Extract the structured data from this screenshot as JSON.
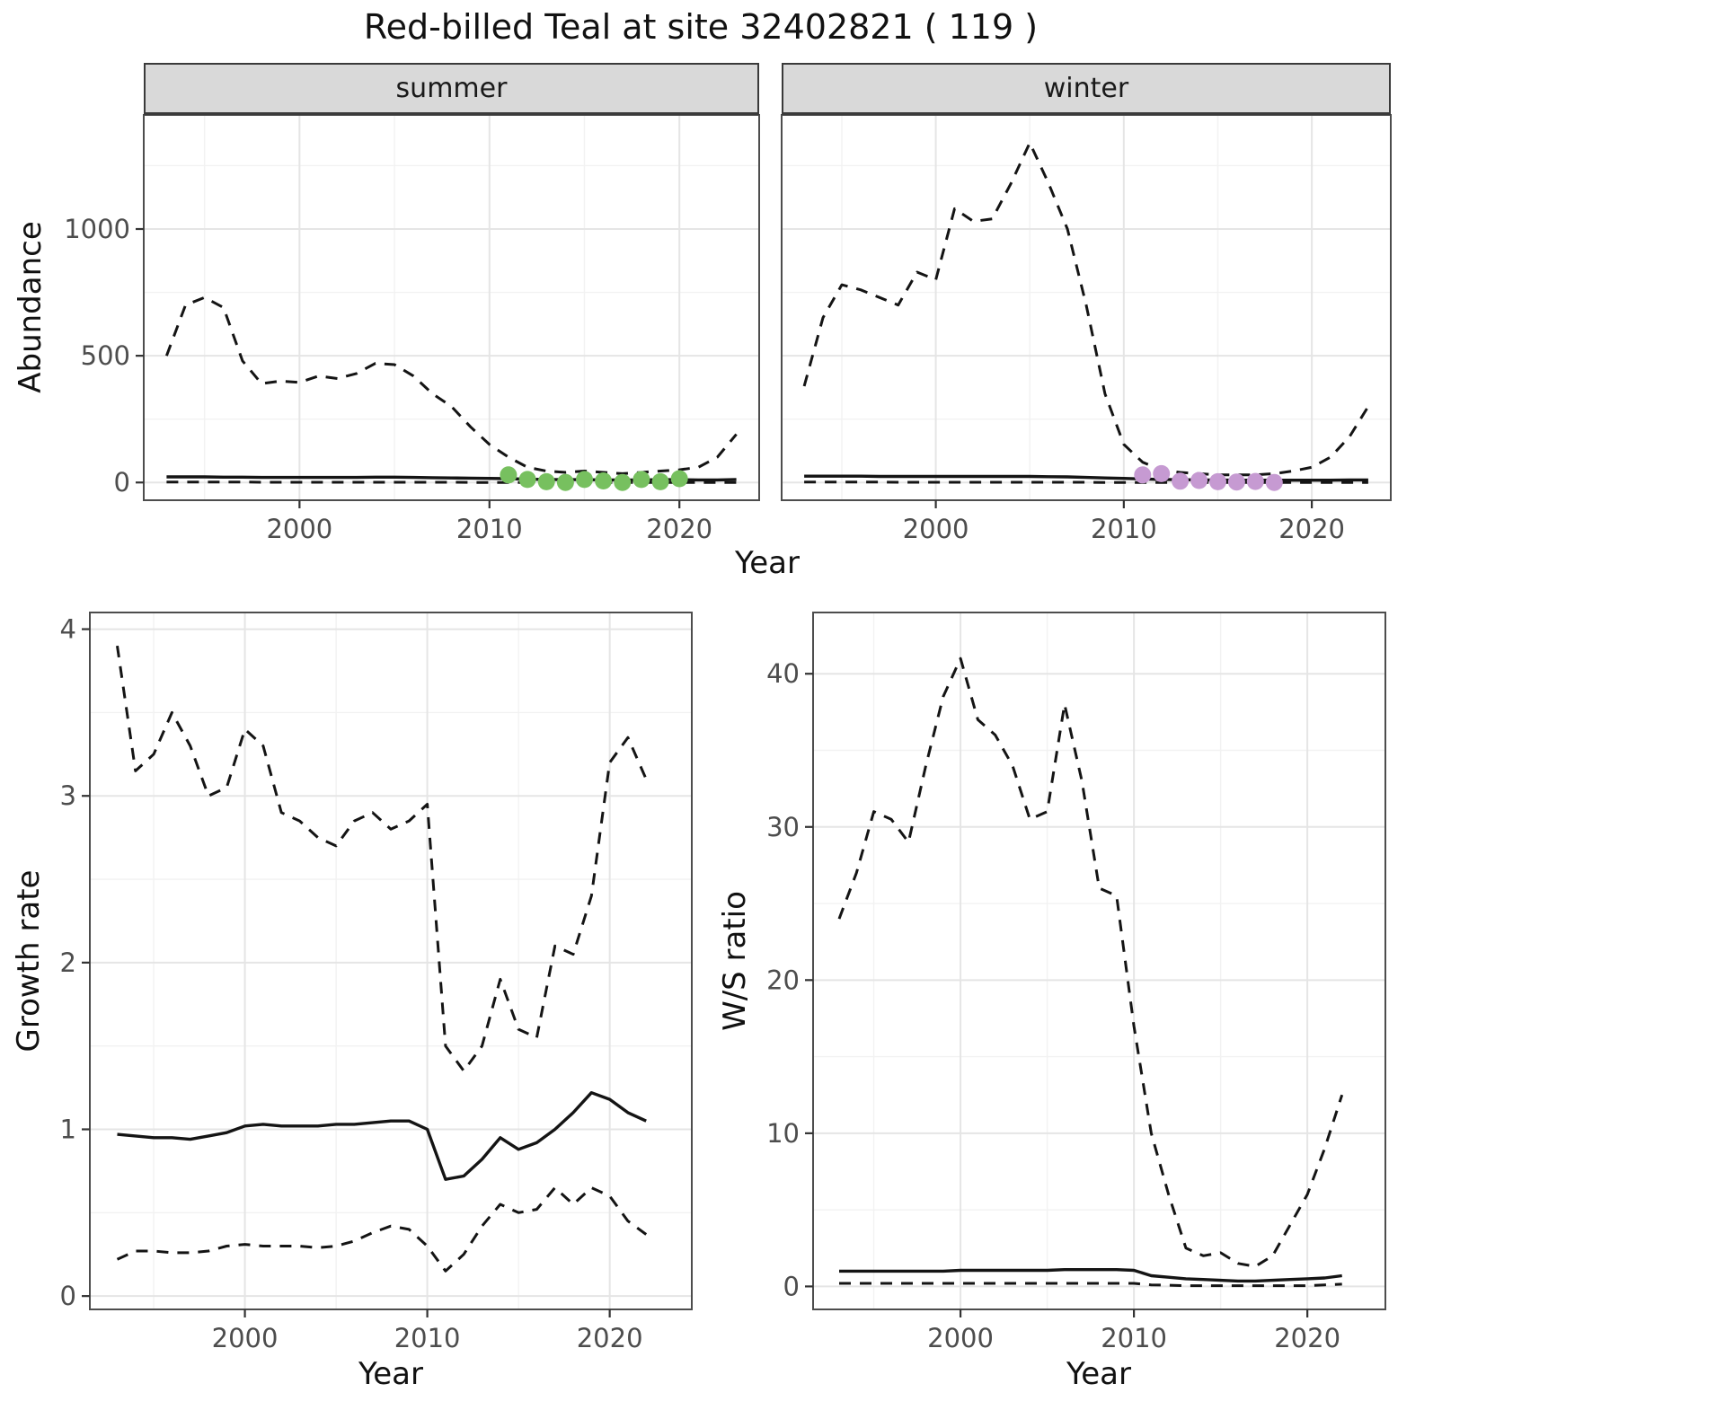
{
  "title": "Red-billed Teal at site 32402821 ( 119 )",
  "style": {
    "strip_bg": "#d9d9d9",
    "line_color": "#141414",
    "summer_point_color": "#77c05f",
    "winter_point_color": "#c69ad2",
    "grid_major": "#e5e5e5",
    "grid_minor": "#f2f2f2",
    "panel_border": "#4d4d4d"
  },
  "chart_data": [
    {
      "id": "abundance",
      "type": "line",
      "ylabel": "Abundance",
      "xlabel": "Year",
      "xlim": [
        1991.8,
        2024.2
      ],
      "ylim": [
        -70,
        1450
      ],
      "xticks": [
        2000,
        2010,
        2020
      ],
      "xminor": [
        1995,
        2005,
        2015
      ],
      "yticks": [
        0,
        500,
        1000
      ],
      "yminor": [
        250,
        750,
        1250
      ],
      "facets": [
        {
          "label": "summer",
          "years": [
            1993,
            1994,
            1995,
            1996,
            1997,
            1998,
            1999,
            2000,
            2001,
            2002,
            2003,
            2004,
            2005,
            2006,
            2007,
            2008,
            2009,
            2010,
            2011,
            2012,
            2013,
            2014,
            2015,
            2016,
            2017,
            2018,
            2019,
            2020,
            2021,
            2022,
            2023
          ],
          "series": [
            {
              "name": "upper-ci",
              "style": "dashed",
              "values": [
                500,
                700,
                730,
                690,
                480,
                390,
                400,
                395,
                420,
                410,
                430,
                470,
                465,
                420,
                350,
                300,
                220,
                150,
                100,
                60,
                45,
                40,
                45,
                40,
                35,
                40,
                45,
                50,
                60,
                100,
                190
              ]
            },
            {
              "name": "median",
              "style": "solid",
              "values": [
                22,
                22,
                22,
                21,
                21,
                20,
                20,
                20,
                20,
                20,
                20,
                21,
                21,
                20,
                19,
                18,
                17,
                16,
                15,
                13,
                12,
                11,
                11,
                10,
                10,
                10,
                11,
                11,
                10,
                10,
                12
              ]
            },
            {
              "name": "lower-ci",
              "style": "dashed",
              "values": [
                2,
                2,
                2,
                2,
                2,
                1,
                1,
                1,
                1,
                1,
                1,
                1,
                1,
                1,
                1,
                1,
                0,
                0,
                0,
                0,
                0,
                0,
                0,
                0,
                0,
                0,
                0,
                0,
                0,
                0,
                0
              ]
            },
            {
              "name": "observed-counts",
              "style": "points",
              "color": "#77c05f",
              "x": [
                2011,
                2012,
                2013,
                2014,
                2015,
                2016,
                2017,
                2018,
                2019,
                2020
              ],
              "values": [
                30,
                12,
                3,
                0,
                12,
                6,
                0,
                12,
                3,
                15
              ]
            }
          ]
        },
        {
          "label": "winter",
          "years": [
            1993,
            1994,
            1995,
            1996,
            1997,
            1998,
            1999,
            2000,
            2001,
            2002,
            2003,
            2004,
            2005,
            2006,
            2007,
            2008,
            2009,
            2010,
            2011,
            2012,
            2013,
            2014,
            2015,
            2016,
            2017,
            2018,
            2019,
            2020,
            2021,
            2022,
            2023
          ],
          "series": [
            {
              "name": "upper-ci",
              "style": "dashed",
              "values": [
                380,
                650,
                780,
                760,
                730,
                700,
                830,
                800,
                1080,
                1030,
                1040,
                1180,
                1340,
                1180,
                1000,
                700,
                350,
                150,
                80,
                50,
                40,
                35,
                30,
                30,
                30,
                35,
                45,
                60,
                100,
                180,
                300
              ]
            },
            {
              "name": "median",
              "style": "solid",
              "values": [
                25,
                25,
                25,
                25,
                24,
                24,
                24,
                24,
                24,
                24,
                24,
                24,
                24,
                23,
                22,
                20,
                18,
                16,
                14,
                12,
                11,
                10,
                10,
                9,
                9,
                9,
                9,
                9,
                9,
                10,
                10
              ]
            },
            {
              "name": "lower-ci",
              "style": "dashed",
              "values": [
                2,
                2,
                2,
                2,
                2,
                1,
                1,
                1,
                1,
                1,
                1,
                1,
                1,
                1,
                1,
                1,
                0,
                0,
                0,
                0,
                0,
                0,
                0,
                0,
                0,
                0,
                0,
                0,
                0,
                0,
                0
              ]
            },
            {
              "name": "observed-counts",
              "style": "points",
              "color": "#c69ad2",
              "x": [
                2011,
                2012,
                2013,
                2014,
                2015,
                2016,
                2017,
                2018
              ],
              "values": [
                30,
                35,
                5,
                8,
                3,
                2,
                4,
                0
              ]
            }
          ]
        }
      ]
    },
    {
      "id": "growth-rate",
      "type": "line",
      "ylabel": "Growth rate",
      "xlabel": "Year",
      "xlim": [
        1991.5,
        2024.5
      ],
      "ylim": [
        -0.08,
        4.1
      ],
      "xticks": [
        2000,
        2010,
        2020
      ],
      "xminor": [
        1995,
        2005,
        2015
      ],
      "yticks": [
        0,
        1,
        2,
        3,
        4
      ],
      "yminor": [
        0.5,
        1.5,
        2.5,
        3.5
      ],
      "years": [
        1993,
        1994,
        1995,
        1996,
        1997,
        1998,
        1999,
        2000,
        2001,
        2002,
        2003,
        2004,
        2005,
        2006,
        2007,
        2008,
        2009,
        2010,
        2011,
        2012,
        2013,
        2014,
        2015,
        2016,
        2017,
        2018,
        2019,
        2020,
        2021,
        2022
      ],
      "series": [
        {
          "name": "upper-ci",
          "style": "dashed",
          "values": [
            3.9,
            3.15,
            3.25,
            3.5,
            3.3,
            3.0,
            3.05,
            3.4,
            3.3,
            2.9,
            2.85,
            2.75,
            2.7,
            2.85,
            2.9,
            2.8,
            2.85,
            2.95,
            1.5,
            1.35,
            1.5,
            1.9,
            1.6,
            1.55,
            2.1,
            2.05,
            2.4,
            3.2,
            3.35,
            3.1
          ]
        },
        {
          "name": "median",
          "style": "solid",
          "values": [
            0.97,
            0.96,
            0.95,
            0.95,
            0.94,
            0.96,
            0.98,
            1.02,
            1.03,
            1.02,
            1.02,
            1.02,
            1.03,
            1.03,
            1.04,
            1.05,
            1.05,
            1.0,
            0.7,
            0.72,
            0.82,
            0.95,
            0.88,
            0.92,
            1.0,
            1.1,
            1.22,
            1.18,
            1.1,
            1.05
          ]
        },
        {
          "name": "lower-ci",
          "style": "dashed",
          "values": [
            0.22,
            0.27,
            0.27,
            0.26,
            0.26,
            0.27,
            0.3,
            0.31,
            0.3,
            0.3,
            0.3,
            0.29,
            0.3,
            0.33,
            0.38,
            0.42,
            0.4,
            0.3,
            0.15,
            0.25,
            0.42,
            0.55,
            0.5,
            0.52,
            0.65,
            0.55,
            0.65,
            0.6,
            0.45,
            0.37
          ]
        }
      ]
    },
    {
      "id": "ws-ratio",
      "type": "line",
      "ylabel": "W/S ratio",
      "xlabel": "Year",
      "xlim": [
        1991.5,
        2024.5
      ],
      "ylim": [
        -1.5,
        44
      ],
      "xticks": [
        2000,
        2010,
        2020
      ],
      "xminor": [
        1995,
        2005,
        2015
      ],
      "yticks": [
        0,
        10,
        20,
        30,
        40
      ],
      "yminor": [
        5,
        15,
        25,
        35
      ],
      "years": [
        1993,
        1994,
        1995,
        1996,
        1997,
        1998,
        1999,
        2000,
        2001,
        2002,
        2003,
        2004,
        2005,
        2006,
        2007,
        2008,
        2009,
        2010,
        2011,
        2012,
        2013,
        2014,
        2015,
        2016,
        2017,
        2018,
        2019,
        2020,
        2021,
        2022
      ],
      "series": [
        {
          "name": "upper-ci",
          "style": "dashed",
          "values": [
            24,
            27,
            31,
            30.5,
            29,
            34,
            38.5,
            41,
            37,
            36,
            34,
            30.5,
            31,
            38,
            33,
            26,
            25.5,
            17,
            10,
            6,
            2.5,
            2,
            2.2,
            1.5,
            1.3,
            2,
            4,
            6,
            9,
            12.5
          ]
        },
        {
          "name": "median",
          "style": "solid",
          "values": [
            1,
            1,
            1,
            1,
            1,
            1,
            1,
            1.05,
            1.05,
            1.05,
            1.05,
            1.05,
            1.05,
            1.1,
            1.1,
            1.1,
            1.1,
            1.05,
            0.7,
            0.6,
            0.5,
            0.45,
            0.4,
            0.35,
            0.35,
            0.4,
            0.45,
            0.5,
            0.55,
            0.7
          ]
        },
        {
          "name": "lower-ci",
          "style": "dashed",
          "values": [
            0.2,
            0.2,
            0.2,
            0.2,
            0.2,
            0.2,
            0.2,
            0.2,
            0.2,
            0.2,
            0.2,
            0.2,
            0.2,
            0.2,
            0.2,
            0.2,
            0.2,
            0.2,
            0.1,
            0.08,
            0.05,
            0.05,
            0.05,
            0.05,
            0.05,
            0.05,
            0.05,
            0.05,
            0.1,
            0.15
          ]
        }
      ]
    }
  ]
}
